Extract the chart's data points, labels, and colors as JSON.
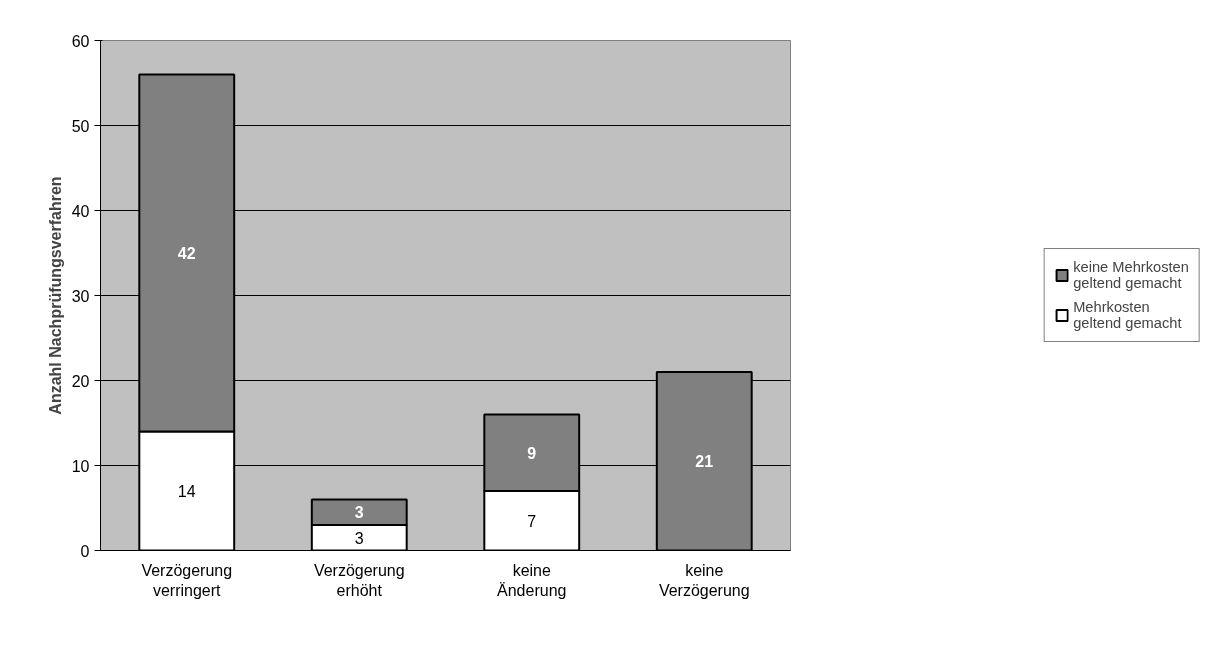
{
  "chart_data": {
    "type": "bar",
    "stacked": true,
    "ylabel": "Anzahl Nachprüfungsverfahren",
    "categories": [
      "Verzögerung verringert",
      "Verzögerung erhöht",
      "keine Änderung",
      "keine Verzögerung"
    ],
    "series": [
      {
        "name": "Mehrkosten geltend gemacht",
        "color": "#ffffff",
        "values": [
          14,
          3,
          7,
          0
        ],
        "value_labels": [
          "14",
          "3",
          "7",
          null
        ]
      },
      {
        "name": "keine Mehrkosten geltend gemacht",
        "color": "#808080",
        "values": [
          42,
          3,
          9,
          21
        ],
        "value_labels": [
          "42",
          "3",
          "9",
          "21"
        ]
      }
    ],
    "ylim": [
      0,
      60
    ],
    "yticks": [
      0,
      10,
      20,
      30,
      40,
      50,
      60
    ],
    "grid": "y",
    "legend": "right"
  }
}
